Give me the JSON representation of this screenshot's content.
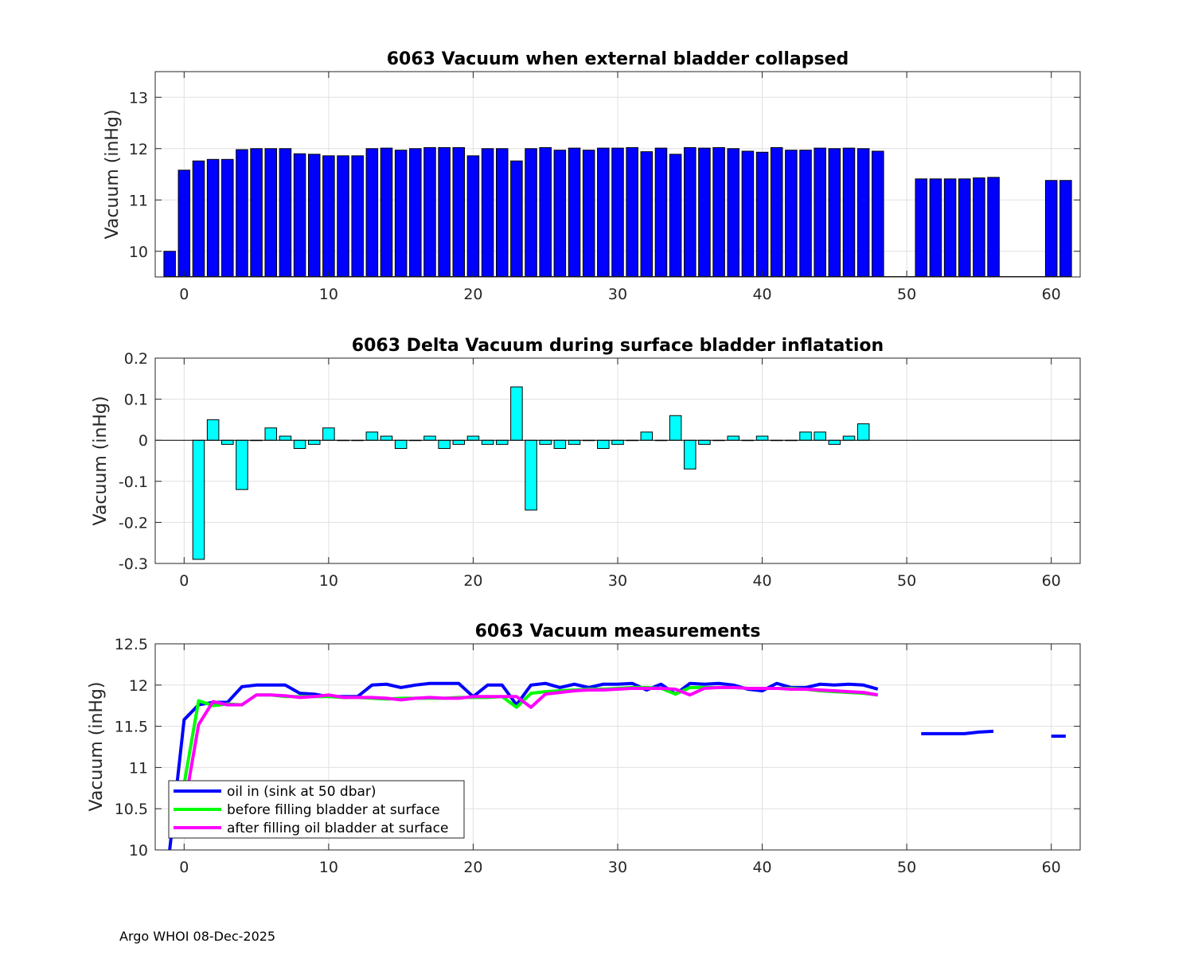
{
  "footer": "Argo WHOI 08-Dec-2025",
  "colors": {
    "bar1": "#0000ff",
    "bar2": "#00ffff",
    "oil_in": "#0000ff",
    "before": "#00ff00",
    "after": "#ff00ff",
    "grid": "#e0e0e0"
  },
  "chart_data": [
    {
      "type": "bar",
      "title": "6063 Vacuum when external bladder collapsed",
      "xlabel": "",
      "ylabel": "Vacuum (inHg)",
      "xlim": [
        -2,
        62
      ],
      "ylim": [
        9.5,
        13.5
      ],
      "xticks": [
        0,
        10,
        20,
        30,
        40,
        50,
        60
      ],
      "yticks": [
        10,
        11,
        12,
        13
      ],
      "x": [
        -1,
        0,
        1,
        2,
        3,
        4,
        5,
        6,
        7,
        8,
        9,
        10,
        11,
        12,
        13,
        14,
        15,
        16,
        17,
        18,
        19,
        20,
        21,
        22,
        23,
        24,
        25,
        26,
        27,
        28,
        29,
        30,
        31,
        32,
        33,
        34,
        35,
        36,
        37,
        38,
        39,
        40,
        41,
        42,
        43,
        44,
        45,
        46,
        47,
        48,
        51,
        52,
        53,
        54,
        55,
        56,
        60,
        61
      ],
      "values": [
        10.0,
        11.58,
        11.76,
        11.79,
        11.79,
        11.98,
        12.0,
        12.0,
        12.0,
        11.9,
        11.89,
        11.86,
        11.86,
        11.86,
        12.0,
        12.01,
        11.97,
        12.0,
        12.02,
        12.02,
        12.02,
        11.86,
        12.0,
        12.0,
        11.76,
        12.0,
        12.02,
        11.97,
        12.01,
        11.97,
        12.01,
        12.01,
        12.02,
        11.94,
        12.01,
        11.89,
        12.02,
        12.01,
        12.02,
        12.0,
        11.95,
        11.93,
        12.02,
        11.97,
        11.97,
        12.01,
        12.0,
        12.01,
        12.0,
        11.95,
        11.41,
        11.41,
        11.41,
        11.41,
        11.43,
        11.44,
        11.38,
        11.38
      ]
    },
    {
      "type": "bar",
      "title": "6063 Delta Vacuum during surface bladder inflatation",
      "xlabel": "",
      "ylabel": "Vacuum (inHg)",
      "xlim": [
        -2,
        62
      ],
      "ylim": [
        -0.3,
        0.2
      ],
      "xticks": [
        0,
        10,
        20,
        30,
        40,
        50,
        60
      ],
      "yticks": [
        -0.3,
        -0.2,
        -0.1,
        0,
        0.1,
        0.2
      ],
      "ytick_labels": [
        "-0.3",
        "-0.2",
        "-0.1",
        "0",
        "0.1",
        "0.2"
      ],
      "x": [
        1,
        2,
        3,
        4,
        5,
        6,
        7,
        8,
        9,
        10,
        11,
        12,
        13,
        14,
        15,
        16,
        17,
        18,
        19,
        20,
        21,
        22,
        23,
        24,
        25,
        26,
        27,
        28,
        29,
        30,
        31,
        32,
        33,
        34,
        35,
        36,
        37,
        38,
        39,
        40,
        41,
        42,
        43,
        44,
        45,
        46,
        47
      ],
      "values": [
        -0.29,
        0.05,
        -0.01,
        -0.12,
        0,
        0.03,
        0.01,
        -0.02,
        -0.01,
        0.03,
        0,
        0,
        0.02,
        0.01,
        -0.02,
        0,
        0.01,
        -0.02,
        -0.01,
        0.01,
        -0.01,
        -0.01,
        0.13,
        -0.17,
        -0.01,
        -0.02,
        -0.01,
        0,
        -0.02,
        -0.01,
        0,
        0.02,
        0,
        0.06,
        -0.07,
        -0.01,
        0,
        0.01,
        0,
        0.01,
        0,
        0,
        0.02,
        0.02,
        -0.01,
        0.01,
        0.04
      ]
    },
    {
      "type": "line",
      "title": "6063 Vacuum measurements",
      "xlabel": "",
      "ylabel": "Vacuum (inHg)",
      "xlim": [
        -2,
        62
      ],
      "ylim": [
        10,
        12.5
      ],
      "xticks": [
        0,
        10,
        20,
        30,
        40,
        50,
        60
      ],
      "yticks": [
        10,
        10.5,
        11,
        11.5,
        12,
        12.5
      ],
      "ytick_labels": [
        "10",
        "10.5",
        "11",
        "11.5",
        "12",
        "12.5"
      ],
      "legend_position": "bottom-left",
      "series": [
        {
          "name": "oil in (sink at 50 dbar)",
          "color": "#0000ff",
          "segments": [
            {
              "x": [
                -1,
                0,
                1,
                2,
                3,
                4,
                5,
                6,
                7,
                8,
                9,
                10,
                11,
                12,
                13,
                14,
                15,
                16,
                17,
                18,
                19,
                20,
                21,
                22,
                23,
                24,
                25,
                26,
                27,
                28,
                29,
                30,
                31,
                32,
                33,
                34,
                35,
                36,
                37,
                38,
                39,
                40,
                41,
                42,
                43,
                44,
                45,
                46,
                47,
                48
              ],
              "y": [
                10.0,
                11.58,
                11.76,
                11.79,
                11.79,
                11.98,
                12.0,
                12.0,
                12.0,
                11.9,
                11.89,
                11.86,
                11.86,
                11.86,
                12.0,
                12.01,
                11.97,
                12.0,
                12.02,
                12.02,
                12.02,
                11.86,
                12.0,
                12.0,
                11.76,
                12.0,
                12.02,
                11.97,
                12.01,
                11.97,
                12.01,
                12.01,
                12.02,
                11.94,
                12.01,
                11.89,
                12.02,
                12.01,
                12.02,
                12.0,
                11.95,
                11.93,
                12.02,
                11.97,
                11.97,
                12.01,
                12.0,
                12.01,
                12.0,
                11.95
              ]
            },
            {
              "x": [
                51,
                52,
                53,
                54,
                55,
                56
              ],
              "y": [
                11.41,
                11.41,
                11.41,
                11.41,
                11.43,
                11.44
              ]
            },
            {
              "x": [
                60,
                61
              ],
              "y": [
                11.38,
                11.38
              ]
            }
          ]
        },
        {
          "name": "before filling bladder at surface",
          "color": "#00ff00",
          "segments": [
            {
              "x": [
                0,
                1,
                2,
                3,
                4,
                5,
                6,
                7,
                8,
                9,
                10,
                11,
                12,
                13,
                14,
                15,
                16,
                17,
                18,
                19,
                20,
                21,
                22,
                23,
                24,
                25,
                26,
                27,
                28,
                29,
                30,
                31,
                32,
                33,
                34,
                35,
                36,
                37,
                38,
                39,
                40,
                41,
                42,
                43,
                44,
                45,
                46,
                47,
                48
              ],
              "y": [
                10.8,
                11.81,
                11.75,
                11.77,
                11.76,
                11.88,
                11.88,
                11.86,
                11.86,
                11.86,
                11.86,
                11.85,
                11.85,
                11.84,
                11.83,
                11.84,
                11.84,
                11.84,
                11.84,
                11.85,
                11.85,
                11.85,
                11.86,
                11.73,
                11.9,
                11.92,
                11.93,
                11.94,
                11.95,
                11.95,
                11.96,
                11.97,
                11.97,
                11.96,
                11.89,
                11.97,
                11.97,
                11.97,
                11.97,
                11.96,
                11.96,
                11.96,
                11.96,
                11.95,
                11.93,
                11.92,
                11.91,
                11.9,
                11.88
              ]
            }
          ]
        },
        {
          "name": "after filling oil bladder at surface",
          "color": "#ff00ff",
          "segments": [
            {
              "x": [
                0,
                1,
                2,
                3,
                4,
                5,
                6,
                7,
                8,
                9,
                10,
                11,
                12,
                13,
                14,
                15,
                16,
                17,
                18,
                19,
                20,
                21,
                22,
                23,
                24,
                25,
                26,
                27,
                28,
                29,
                30,
                31,
                32,
                33,
                34,
                35,
                36,
                37,
                38,
                39,
                40,
                41,
                42,
                43,
                44,
                45,
                46,
                47,
                48
              ],
              "y": [
                10.5,
                11.52,
                11.8,
                11.76,
                11.76,
                11.88,
                11.88,
                11.87,
                11.85,
                11.86,
                11.88,
                11.85,
                11.85,
                11.85,
                11.84,
                11.82,
                11.84,
                11.85,
                11.84,
                11.84,
                11.86,
                11.86,
                11.86,
                11.86,
                11.73,
                11.89,
                11.91,
                11.93,
                11.94,
                11.94,
                11.95,
                11.96,
                11.96,
                11.96,
                11.95,
                11.88,
                11.96,
                11.97,
                11.97,
                11.96,
                11.96,
                11.96,
                11.95,
                11.95,
                11.94,
                11.93,
                11.92,
                11.91,
                11.88
              ]
            }
          ]
        }
      ]
    }
  ]
}
